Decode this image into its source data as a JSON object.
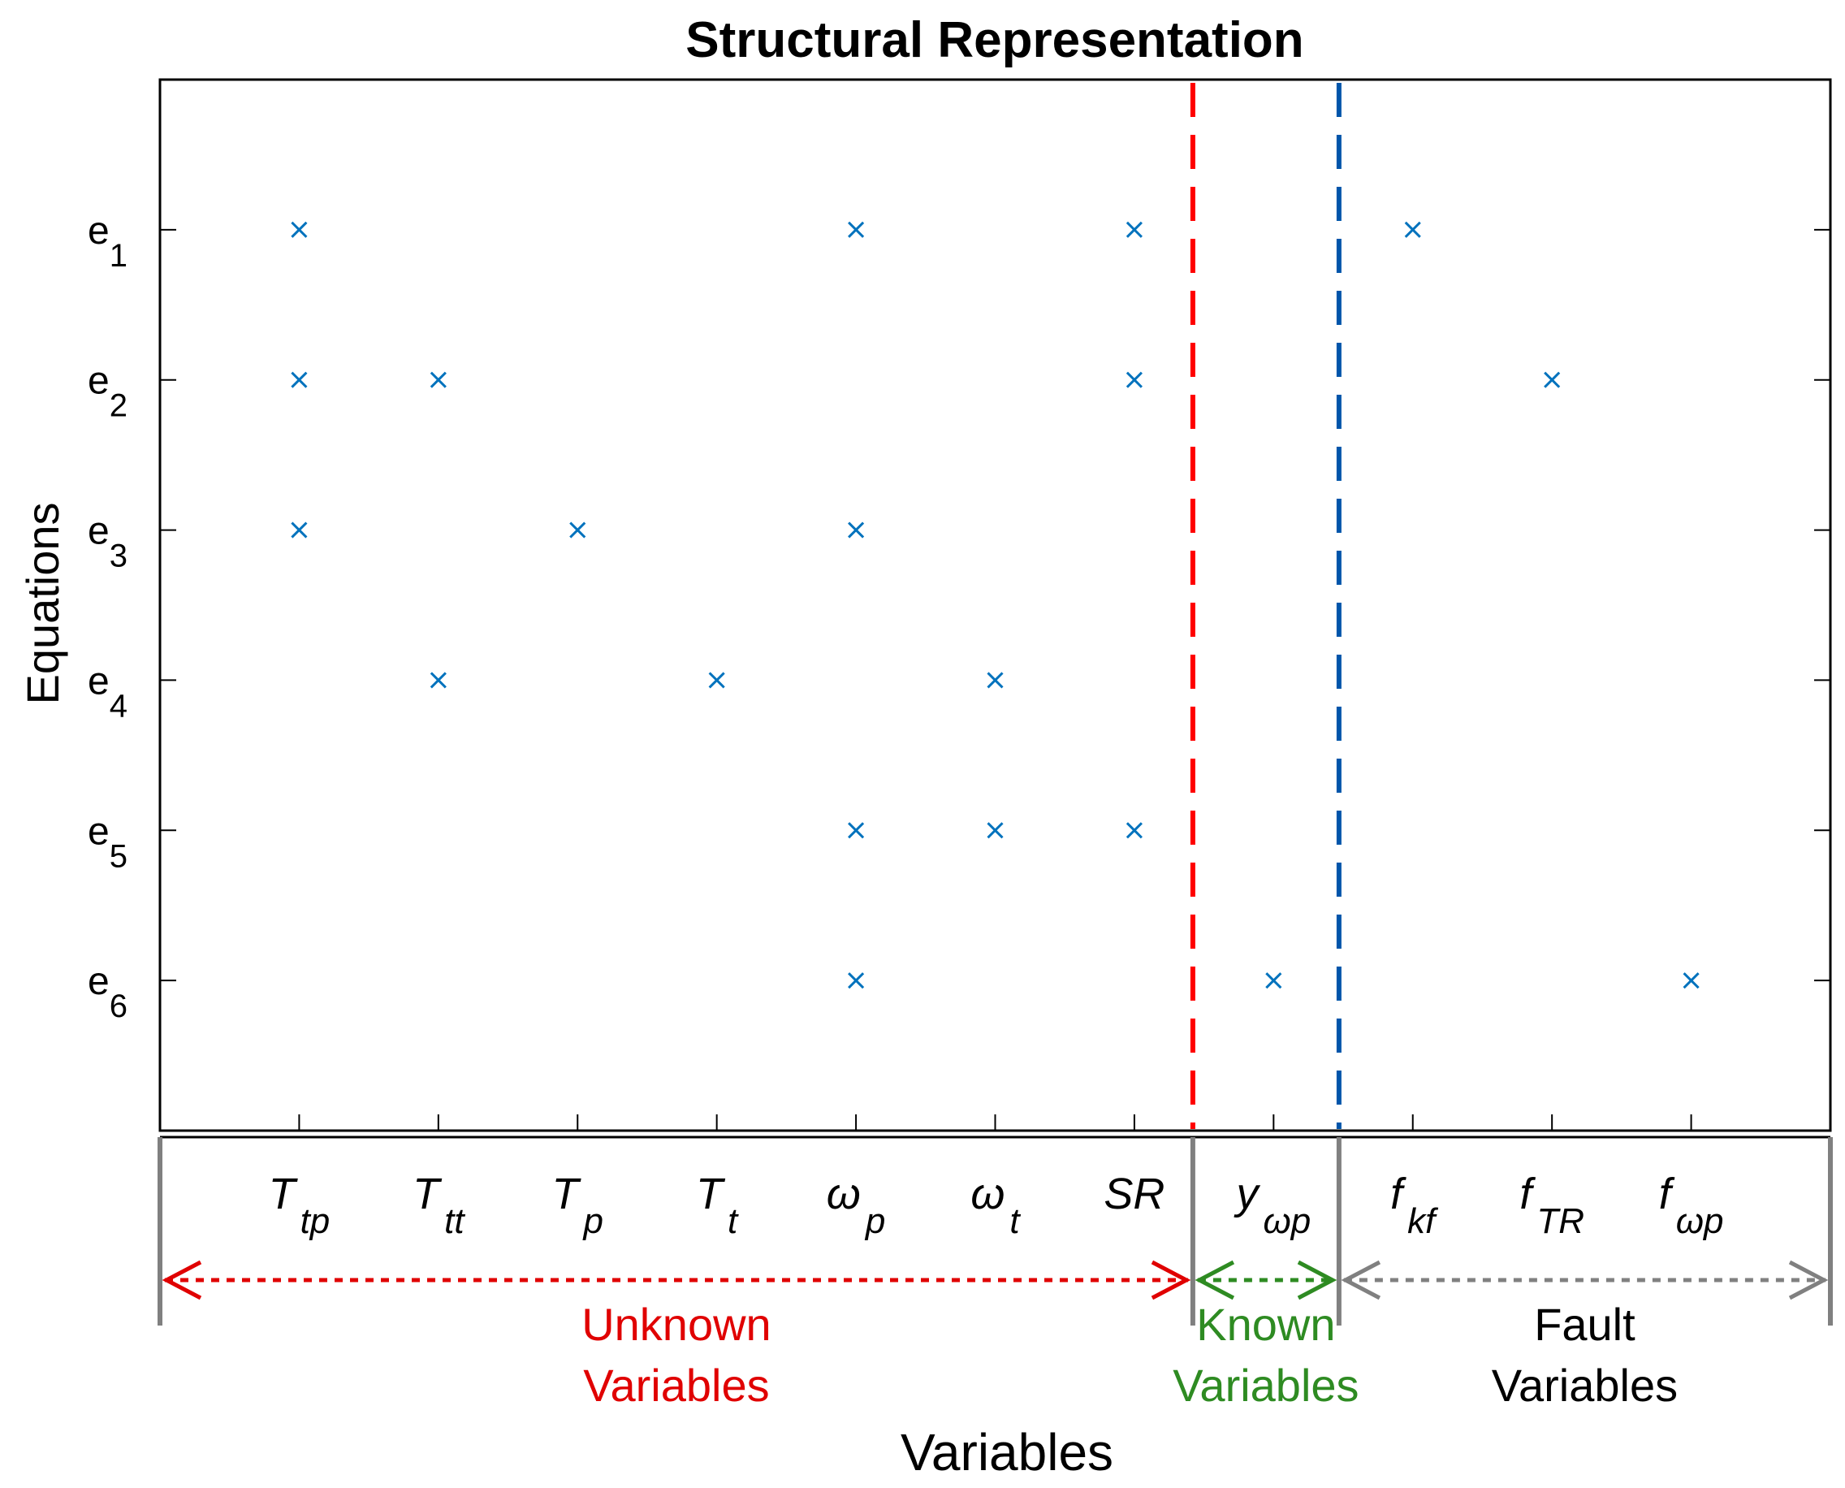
{
  "chart_data": {
    "type": "scatter",
    "title": "Structural Representation",
    "xlabel": "Variables",
    "ylabel": "Equations",
    "marker": "x",
    "marker_color": "#0072BD",
    "x_categories": [
      {
        "main": "T",
        "sub": "tp"
      },
      {
        "main": "T",
        "sub": "tt"
      },
      {
        "main": "T",
        "sub": "p"
      },
      {
        "main": "T",
        "sub": "t"
      },
      {
        "main": "ω",
        "sub": "p"
      },
      {
        "main": "ω",
        "sub": "t"
      },
      {
        "main": "SR",
        "sub": ""
      },
      {
        "main": "y",
        "sub": "ωp"
      },
      {
        "main": "f",
        "sub": "kf"
      },
      {
        "main": "f",
        "sub": "TR"
      },
      {
        "main": "f",
        "sub": "ωp"
      }
    ],
    "y_categories": [
      {
        "main": "e",
        "sub": "1"
      },
      {
        "main": "e",
        "sub": "2"
      },
      {
        "main": "e",
        "sub": "3"
      },
      {
        "main": "e",
        "sub": "4"
      },
      {
        "main": "e",
        "sub": "5"
      },
      {
        "main": "e",
        "sub": "6"
      }
    ],
    "xlim": [
      0,
      12
    ],
    "ylim": [
      0,
      7
    ],
    "y_reversed": true,
    "points": [
      {
        "x": 1,
        "y": 1
      },
      {
        "x": 5,
        "y": 1
      },
      {
        "x": 7,
        "y": 1
      },
      {
        "x": 9,
        "y": 1
      },
      {
        "x": 1,
        "y": 2
      },
      {
        "x": 2,
        "y": 2
      },
      {
        "x": 7,
        "y": 2
      },
      {
        "x": 10,
        "y": 2
      },
      {
        "x": 1,
        "y": 3
      },
      {
        "x": 3,
        "y": 3
      },
      {
        "x": 5,
        "y": 3
      },
      {
        "x": 2,
        "y": 4
      },
      {
        "x": 4,
        "y": 4
      },
      {
        "x": 6,
        "y": 4
      },
      {
        "x": 5,
        "y": 5
      },
      {
        "x": 6,
        "y": 5
      },
      {
        "x": 7,
        "y": 5
      },
      {
        "x": 5,
        "y": 6
      },
      {
        "x": 8,
        "y": 6
      },
      {
        "x": 11,
        "y": 6
      }
    ],
    "separators": [
      {
        "x": 7.42,
        "color": "#FF0000",
        "style": "dashed"
      },
      {
        "x": 8.47,
        "color": "#0055AA",
        "style": "dashed"
      }
    ],
    "groups": [
      {
        "label_line1": "Unknown",
        "label_line2": "Variables",
        "x_start": 0,
        "x_end": 7.42,
        "color": "#E00000"
      },
      {
        "label_line1": "Known",
        "label_line2": "Variables",
        "x_start": 7.42,
        "x_end": 8.47,
        "color": "#2E8B22"
      },
      {
        "label_line1": "Fault",
        "label_line2": "Variables",
        "x_start": 8.47,
        "x_end": 12,
        "color": "#000000",
        "arrow_color": "#808080"
      }
    ],
    "grid": false
  }
}
